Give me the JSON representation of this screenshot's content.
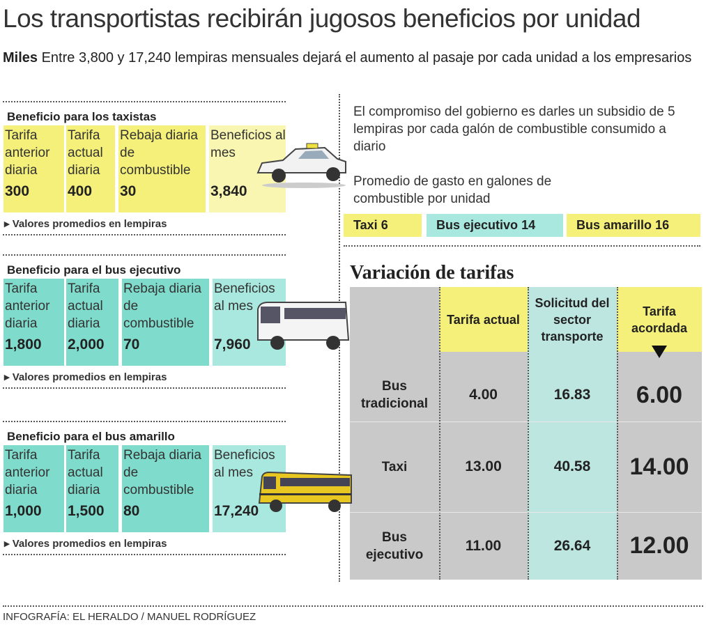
{
  "header": {
    "title": "Los transportistas recibirán jugosos beneficios por unidad",
    "lead_bold": "Miles",
    "lead": "Entre 3,800 y 17,240 lempiras mensuales dejará el aumento al pasaje por cada unidad a los empresarios"
  },
  "benefits": [
    {
      "title": "Beneficio para los taxistas",
      "headers": [
        "Tarifa anterior diaria",
        "Tarifa actual diaria",
        "Rebaja diaria de combustible",
        "Beneficios al mes"
      ],
      "values": [
        "300",
        "400",
        "30",
        "3,840"
      ],
      "note": "Valores promedios en lempiras"
    },
    {
      "title": "Beneficio para el bus ejecutivo",
      "headers": [
        "Tarifa anterior diaria",
        "Tarifa actual diaria",
        "Rebaja diaria de combustible",
        "Beneficios al mes"
      ],
      "values": [
        "1,800",
        "2,000",
        "70",
        "7,960"
      ],
      "note": "Valores promedios en lempiras"
    },
    {
      "title": "Beneficio para el bus amarillo",
      "headers": [
        "Tarifa anterior diaria",
        "Tarifa actual diaria",
        "Rebaja diaria de combustible",
        "Beneficios al mes"
      ],
      "values": [
        "1,000",
        "1,500",
        "80",
        "17,240"
      ],
      "note": "Valores promedios en lempiras"
    }
  ],
  "subsidy": {
    "text": "El compromiso del gobierno es darles un subsidio de 5 lempiras por cada galón de combustible consumido a diario",
    "avg_title": "Promedio de gasto en galones de combustible por unidad",
    "items": [
      {
        "label": "Taxi",
        "value": "6"
      },
      {
        "label": "Bus ejecutivo",
        "value": "14"
      },
      {
        "label": "Bus amarillo",
        "value": "16"
      }
    ]
  },
  "tariffs": {
    "title": "Variación de tarifas",
    "columns": [
      "Tarifa actual",
      "Solicitud del sector transporte",
      "Tarifa acordada"
    ],
    "rows": [
      {
        "label": "Bus tradicional",
        "values": [
          "4.00",
          "16.83",
          "6.00"
        ]
      },
      {
        "label": "Taxi",
        "values": [
          "13.00",
          "40.58",
          "14.00"
        ]
      },
      {
        "label": "Bus ejecutivo",
        "values": [
          "11.00",
          "26.64",
          "12.00"
        ]
      }
    ]
  },
  "credit": "INFOGRAFÍA: EL HERALDO / MANUEL RODRÍGUEZ"
}
